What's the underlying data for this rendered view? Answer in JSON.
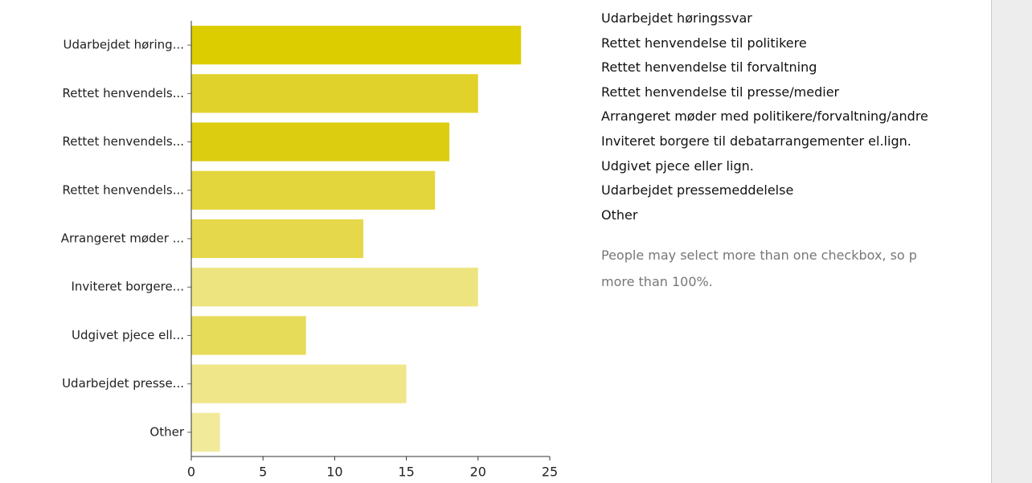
{
  "chart_data": {
    "type": "bar",
    "orientation": "horizontal",
    "categories": [
      "Udarbejdet høring...",
      "Rettet henvendels...",
      "Rettet henvendels...",
      "Rettet henvendels...",
      "Arrangeret møder ...",
      "Inviteret borgere...",
      "Udgivet pjece ell...",
      "Udarbejdet presse...",
      "Other"
    ],
    "values": [
      23,
      20,
      18,
      17,
      12,
      20,
      8,
      15,
      2
    ],
    "colors": [
      "#dccd00",
      "#e0d22a",
      "#dccd10",
      "#e3d63c",
      "#e5d84a",
      "#ede480",
      "#e7db5a",
      "#efe68a",
      "#f1ea9a"
    ],
    "xlim": [
      0,
      25
    ],
    "xticks": [
      0,
      5,
      10,
      15,
      20,
      25
    ],
    "grid": false
  },
  "legend_items": [
    "Udarbejdet høringssvar",
    "Rettet henvendelse til politikere",
    "Rettet henvendelse til forvaltning",
    "Rettet henvendelse til presse/medier",
    "Arrangeret møder med politikere/forvaltning/andre",
    "Inviteret borgere til debatarrangementer el.lign.",
    "Udgivet pjece eller lign.",
    "Udarbejdet pressemeddelelse",
    "Other"
  ],
  "note": "People may select more than one checkbox, so p\nmore than 100%."
}
